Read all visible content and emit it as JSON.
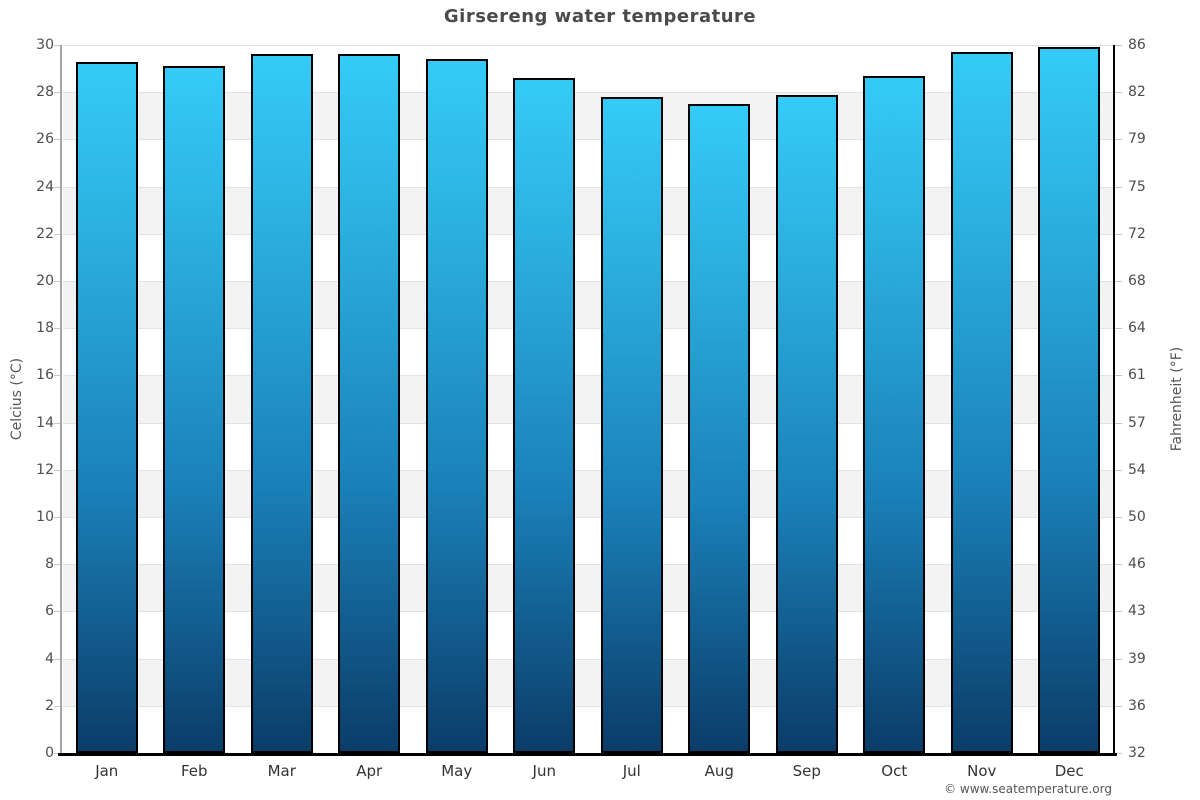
{
  "title": "Girsereng water temperature",
  "footer": {
    "credit": "© www.seatemperature.org"
  },
  "axes": {
    "left_title": "Celcius (°C)",
    "right_title": "Fahrenheit (°F)"
  },
  "chart_data": {
    "type": "bar",
    "title": "Girsereng water temperature",
    "categories": [
      "Jan",
      "Feb",
      "Mar",
      "Apr",
      "May",
      "Jun",
      "Jul",
      "Aug",
      "Sep",
      "Oct",
      "Nov",
      "Dec"
    ],
    "series": [
      {
        "name": "Water temperature",
        "unit": "°C",
        "values": [
          29.3,
          29.1,
          29.6,
          29.6,
          29.4,
          28.6,
          27.8,
          27.5,
          27.9,
          28.7,
          29.7,
          29.9
        ]
      }
    ],
    "xlabel": "",
    "ylabel": "Celcius (°C)",
    "ylabel_right": "Fahrenheit (°F)",
    "ylim": [
      0,
      30
    ],
    "yticks_celsius": [
      0,
      2,
      4,
      6,
      8,
      10,
      12,
      14,
      16,
      18,
      20,
      22,
      24,
      26,
      28,
      30
    ],
    "yticks_fahrenheit": [
      32,
      36,
      39,
      43,
      46,
      50,
      54,
      57,
      61,
      64,
      68,
      72,
      75,
      79,
      82,
      86
    ],
    "grid": "alternating horizontal bands every 2°C",
    "legend": "none",
    "colors": {
      "bar_top": "#35cbf8",
      "bar_mid": "#1a80b8",
      "bar_bottom": "#0b3c68",
      "bar_border": "#000000",
      "band_white": "#ffffff",
      "band_gray": "#f3f3f3",
      "band_edge": "#e2e2e2",
      "left_axis_line": "#a6a6a6",
      "right_axis_line": "#000000",
      "bottom_axis_line": "#000000",
      "tick_label": "#4d4d4d",
      "month_label": "#333333",
      "title": "#4a4a4a",
      "credit": "#555555"
    }
  }
}
